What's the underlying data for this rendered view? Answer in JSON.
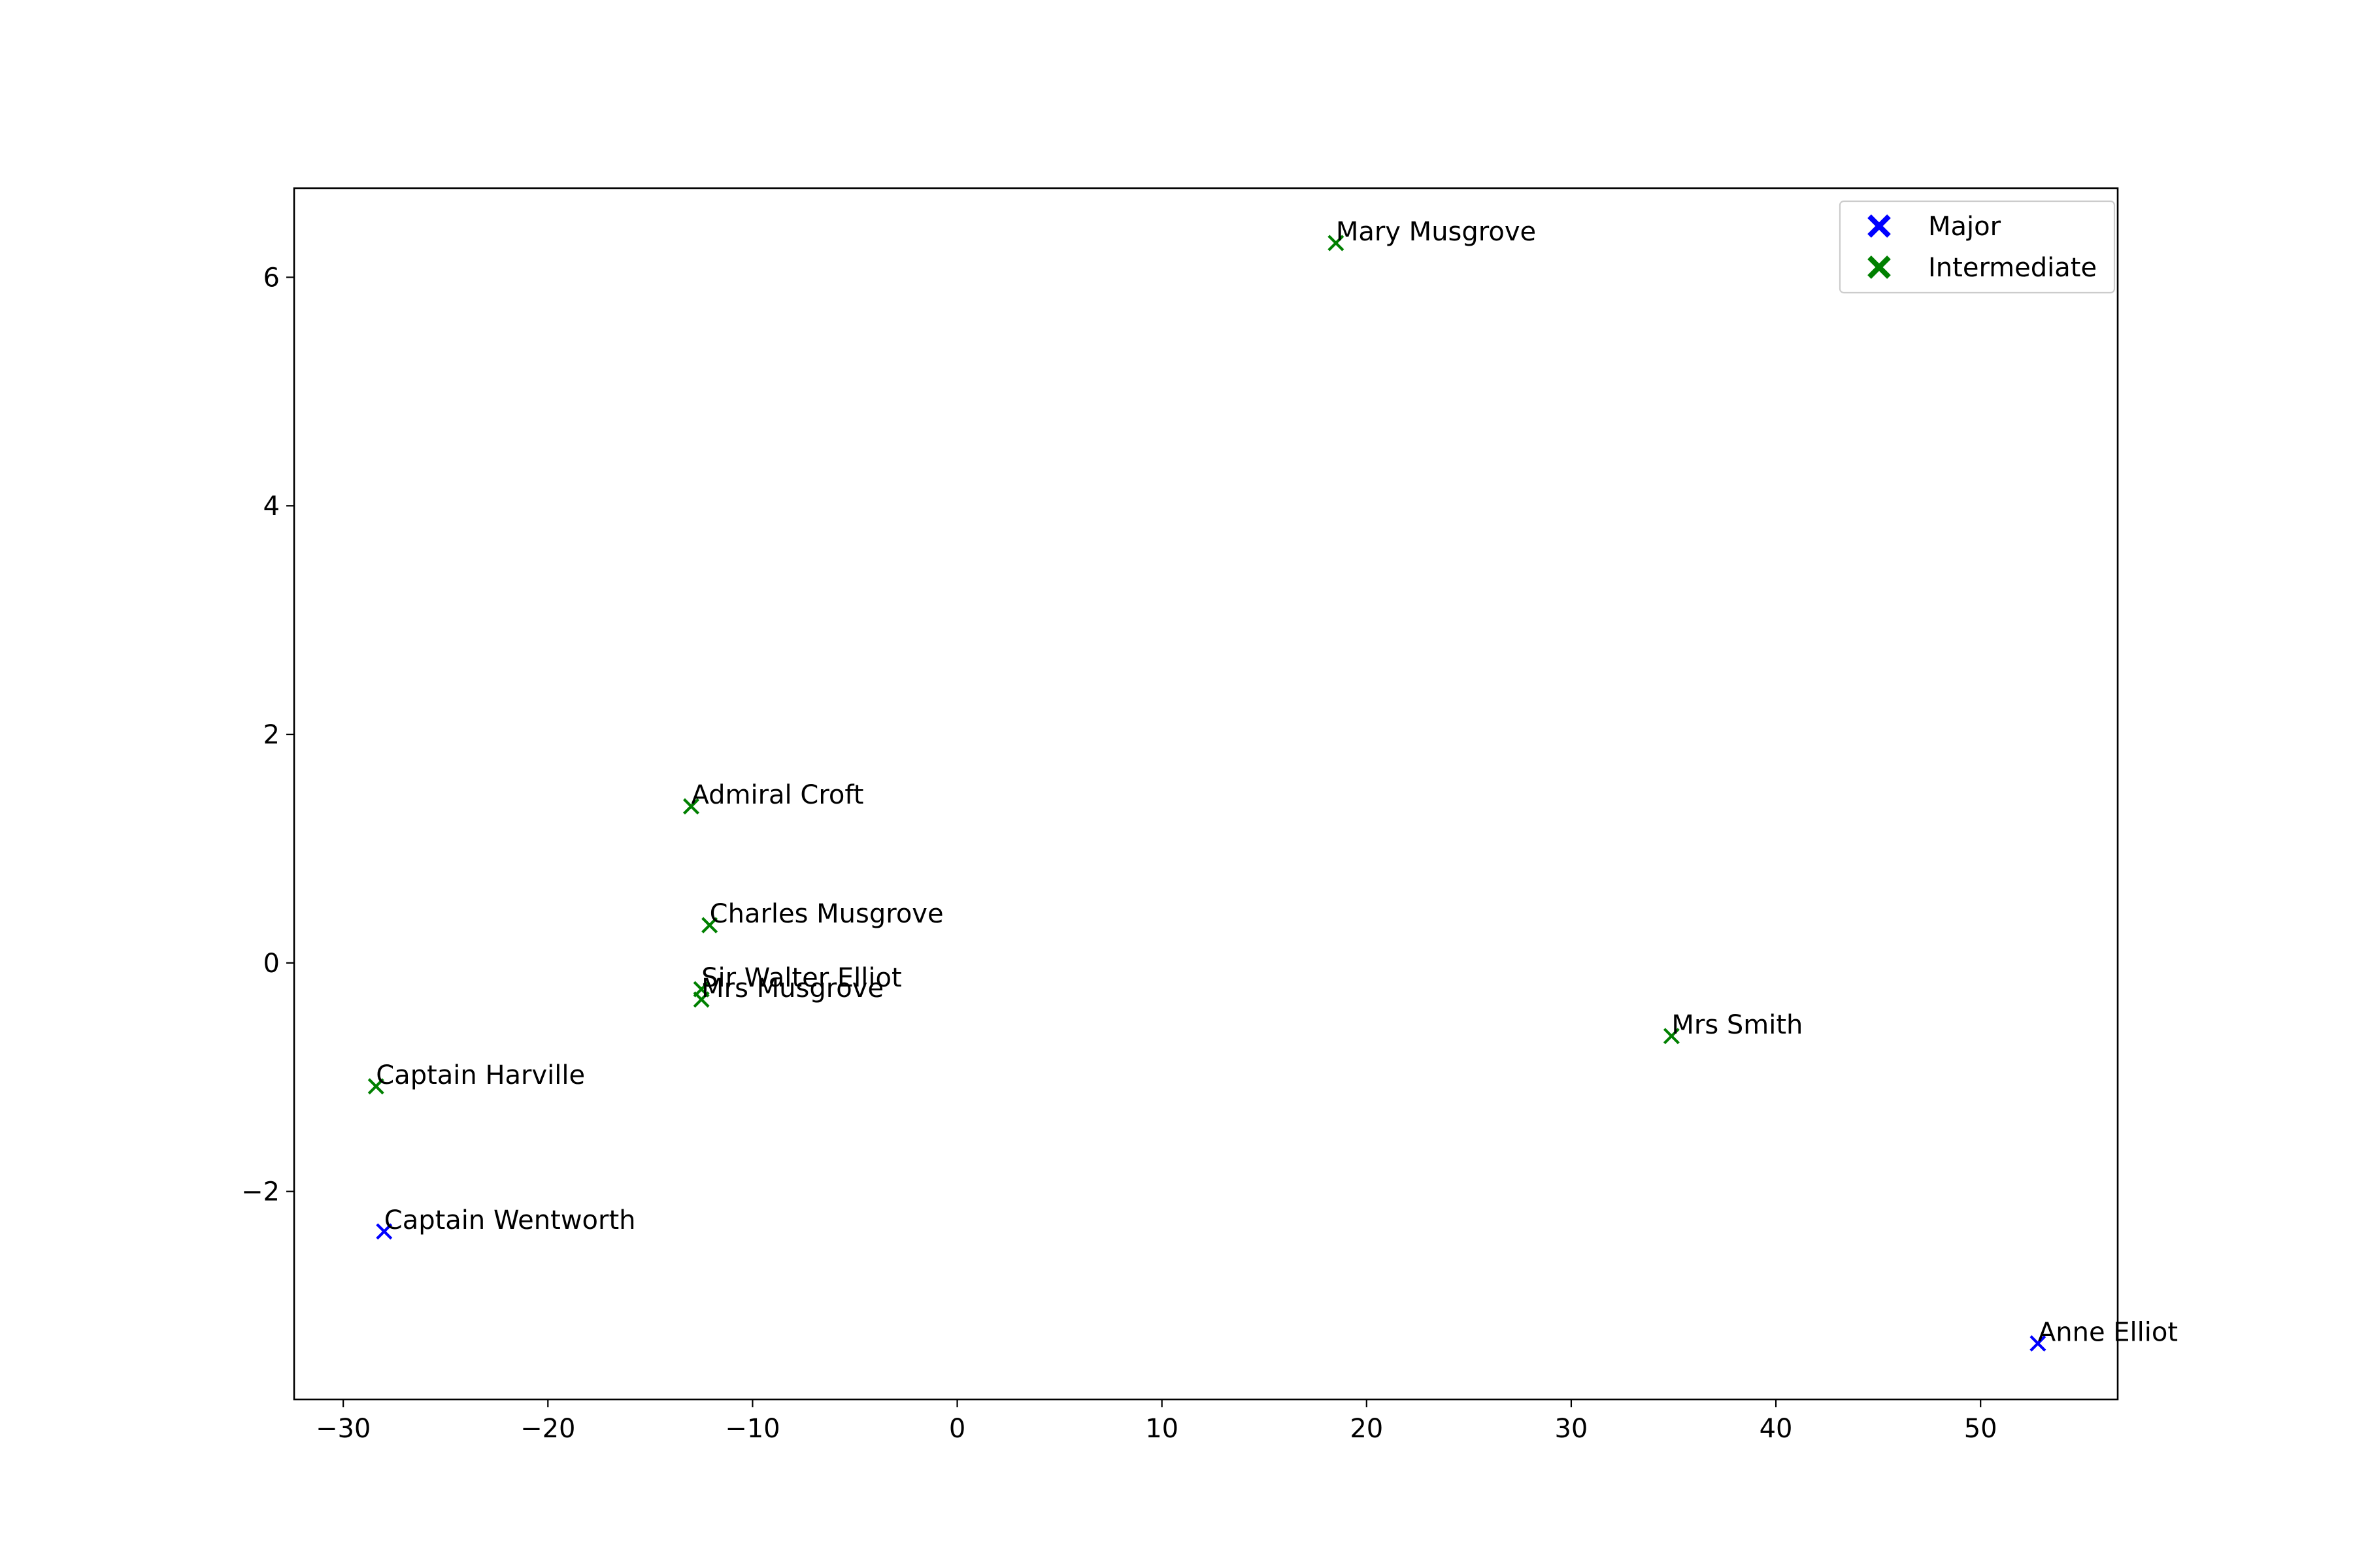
{
  "chart_data": {
    "type": "scatter",
    "title": "",
    "xlabel": "",
    "ylabel": "",
    "xlim": [
      -32.4,
      56.7
    ],
    "ylim": [
      -3.82,
      6.78
    ],
    "x_ticks": [
      -30,
      -20,
      -10,
      0,
      10,
      20,
      30,
      40,
      50
    ],
    "x_tick_labels": [
      "−30",
      "−20",
      "−10",
      "0",
      "10",
      "20",
      "30",
      "40",
      "50"
    ],
    "y_ticks": [
      -2,
      0,
      2,
      4,
      6
    ],
    "y_tick_labels": [
      "−2",
      "0",
      "2",
      "4",
      "6"
    ],
    "grid": false,
    "legend_position": "top-right",
    "marker": "x",
    "series": [
      {
        "name": "Major",
        "color": "#0000ff",
        "points": [
          {
            "label": "Captain Wentworth",
            "x": -28.0,
            "y": -2.35
          },
          {
            "label": "Anne Elliot",
            "x": 52.8,
            "y": -3.33
          }
        ]
      },
      {
        "name": "Intermediate",
        "color": "#008000",
        "points": [
          {
            "label": "Mary Musgrove",
            "x": 18.5,
            "y": 6.3
          },
          {
            "label": "Admiral Croft",
            "x": -13.0,
            "y": 1.37
          },
          {
            "label": "Charles Musgrove",
            "x": -12.1,
            "y": 0.33
          },
          {
            "label": "Sir Walter Elliot",
            "x": -12.5,
            "y": -0.23
          },
          {
            "label": "Mrs Musgrove",
            "x": -12.5,
            "y": -0.32
          },
          {
            "label": "Mrs Smith",
            "x": 34.9,
            "y": -0.64
          },
          {
            "label": "Captain Harville",
            "x": -28.4,
            "y": -1.08
          }
        ]
      }
    ]
  }
}
